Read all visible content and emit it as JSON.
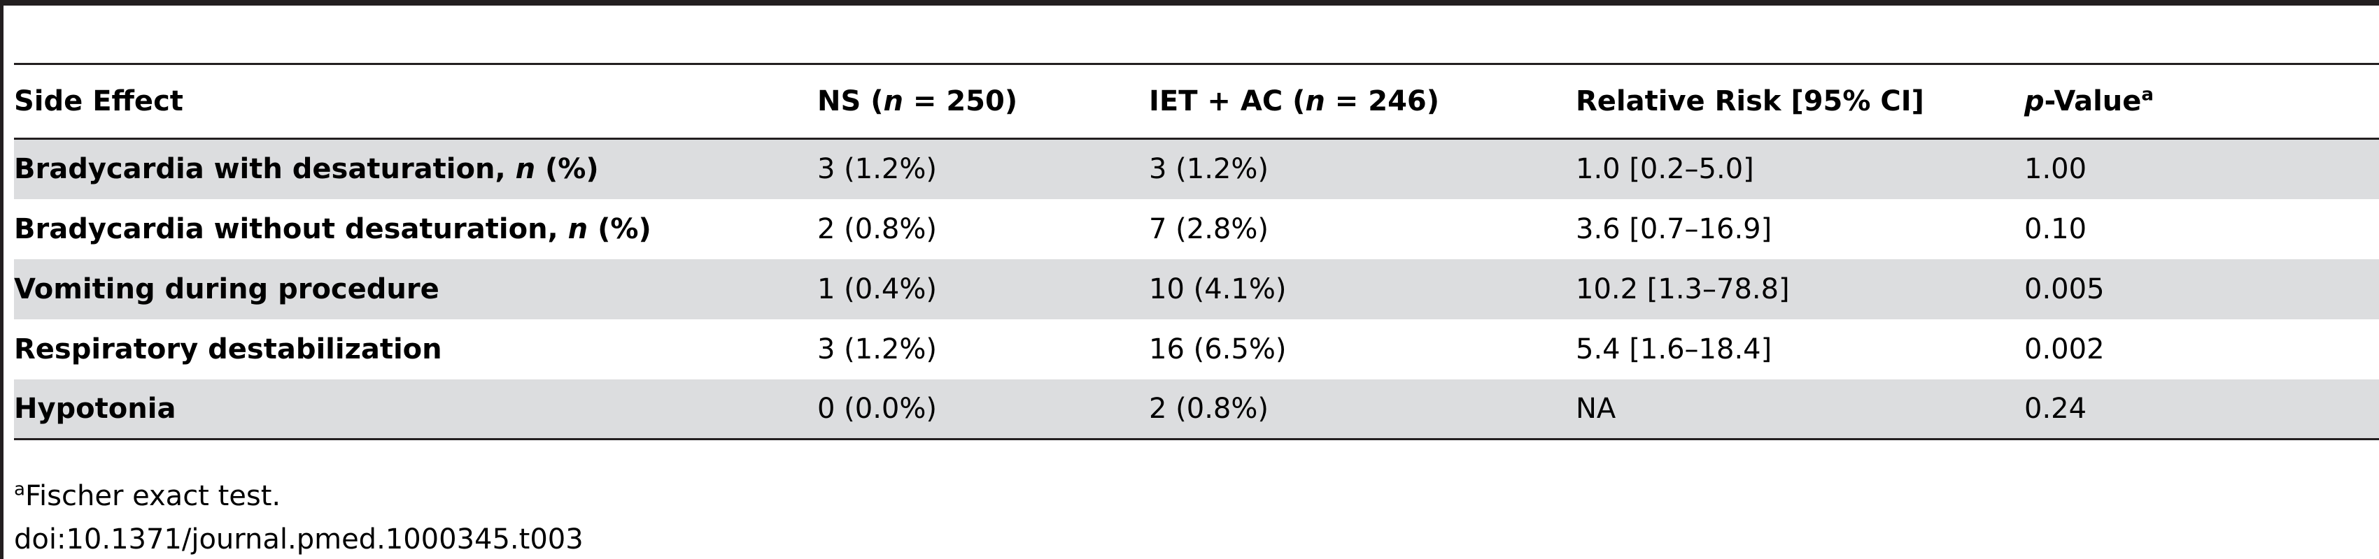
{
  "table": {
    "headers": {
      "side_effect": "Side Effect",
      "ns_label": "NS (",
      "ns_n": "n",
      "ns_count": " = 250)",
      "iet_label": "IET + AC (",
      "iet_n": "n",
      "iet_count": " = 246)",
      "rr": "Relative Risk [95% CI]",
      "p_italic": "p",
      "p_rest": "-Value",
      "p_sup": "a"
    },
    "rows": [
      {
        "label": "Bradycardia with desaturation, ",
        "label_italic": "n",
        "label_suffix": " (%)",
        "ns": "3 (1.2%)",
        "iet": "3 (1.2%)",
        "rr": "1.0 [0.2–5.0]",
        "p": "1.00"
      },
      {
        "label": "Bradycardia without desaturation, ",
        "label_italic": "n",
        "label_suffix": " (%)",
        "ns": "2 (0.8%)",
        "iet": "7 (2.8%)",
        "rr": "3.6 [0.7–16.9]",
        "p": "0.10"
      },
      {
        "label": "Vomiting during procedure",
        "label_italic": "",
        "label_suffix": "",
        "ns": "1 (0.4%)",
        "iet": "10 (4.1%)",
        "rr": "10.2 [1.3–78.8]",
        "p": "0.005"
      },
      {
        "label": "Respiratory destabilization",
        "label_italic": "",
        "label_suffix": "",
        "ns": "3 (1.2%)",
        "iet": "16 (6.5%)",
        "rr": "5.4 [1.6–18.4]",
        "p": "0.002"
      },
      {
        "label": "Hypotonia",
        "label_italic": "",
        "label_suffix": "",
        "ns": "0 (0.0%)",
        "iet": "2 (0.8%)",
        "rr": "NA",
        "p": "0.24"
      }
    ]
  },
  "footnote": {
    "marker": "a",
    "text": "Fischer exact test."
  },
  "doi": "doi:10.1371/journal.pmed.1000345.t003",
  "colors": {
    "rule": "#231f20",
    "shade": "#dcdddf"
  }
}
